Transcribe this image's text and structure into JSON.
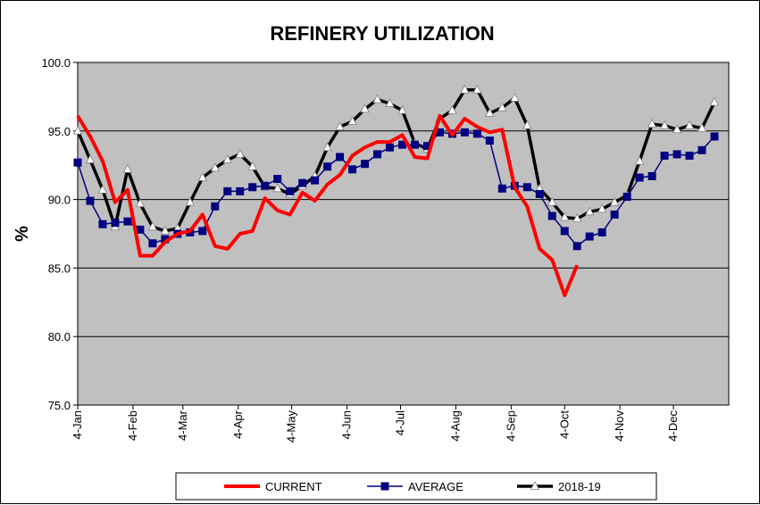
{
  "chart_data": {
    "type": "line",
    "title": "REFINERY UTILIZATION",
    "xlabel": "",
    "ylabel": "%",
    "ylim": [
      75,
      100
    ],
    "yticks": [
      "75.0",
      "80.0",
      "85.0",
      "90.0",
      "95.0",
      "100.0"
    ],
    "xticks": [
      "4-Jan",
      "4-Feb",
      "4-Mar",
      "4-Apr",
      "4-May",
      "4-Jun",
      "4-Jul",
      "4-Aug",
      "4-Sep",
      "4-Oct",
      "4-Nov",
      "4-Dec"
    ],
    "x_domain": [
      "4-Jan",
      "4-Jan (next year)"
    ],
    "grid": "horizontal",
    "legend": "bottom",
    "colors": {
      "plot_bg": "#C0C0C0",
      "current": "#FF0000",
      "average": "#000080",
      "prior": "#000000",
      "prior_marker": "#FFFFFF"
    },
    "series": [
      {
        "name": "CURRENT",
        "marker": "none",
        "x": [
          "4-Jan",
          "11-Jan",
          "18-Jan",
          "25-Jan",
          "1-Feb",
          "8-Feb",
          "15-Feb",
          "22-Feb",
          "1-Mar",
          "8-Mar",
          "15-Mar",
          "22-Mar",
          "29-Mar",
          "5-Apr",
          "12-Apr",
          "19-Apr",
          "26-Apr",
          "3-May",
          "10-May",
          "17-May",
          "24-May",
          "31-May",
          "7-Jun",
          "14-Jun",
          "21-Jun",
          "28-Jun",
          "5-Jul",
          "12-Jul",
          "19-Jul",
          "26-Jul",
          "2-Aug",
          "9-Aug",
          "16-Aug",
          "23-Aug",
          "30-Aug",
          "6-Sep",
          "13-Sep",
          "20-Sep",
          "27-Sep",
          "4-Oct",
          "11-Oct",
          "18-Oct"
        ],
        "values": [
          96.1,
          94.6,
          92.8,
          89.8,
          90.7,
          85.9,
          85.9,
          86.9,
          87.5,
          87.7,
          88.9,
          86.6,
          86.4,
          87.5,
          87.7,
          90.1,
          89.2,
          88.9,
          90.5,
          89.9,
          91.1,
          91.8,
          93.2,
          93.8,
          94.2,
          94.2,
          94.7,
          93.1,
          93.0,
          96.1,
          94.7,
          95.9,
          95.3,
          94.9,
          95.1,
          90.9,
          89.5,
          86.4,
          85.6,
          83.0,
          85.2,
          null
        ]
      },
      {
        "name": "AVERAGE",
        "marker": "square",
        "x": [
          "4-Jan",
          "11-Jan",
          "18-Jan",
          "25-Jan",
          "1-Feb",
          "8-Feb",
          "15-Feb",
          "22-Feb",
          "1-Mar",
          "8-Mar",
          "15-Mar",
          "22-Mar",
          "29-Mar",
          "5-Apr",
          "12-Apr",
          "19-Apr",
          "26-Apr",
          "3-May",
          "10-May",
          "17-May",
          "24-May",
          "31-May",
          "7-Jun",
          "14-Jun",
          "21-Jun",
          "28-Jun",
          "5-Jul",
          "12-Jul",
          "19-Jul",
          "26-Jul",
          "2-Aug",
          "9-Aug",
          "16-Aug",
          "23-Aug",
          "30-Aug",
          "6-Sep",
          "13-Sep",
          "20-Sep",
          "27-Sep",
          "4-Oct",
          "11-Oct",
          "18-Oct",
          "25-Oct",
          "1-Nov",
          "8-Nov",
          "15-Nov",
          "22-Nov",
          "29-Nov",
          "6-Dec",
          "13-Dec",
          "20-Dec",
          "27-Dec"
        ],
        "values": [
          92.7,
          89.9,
          88.2,
          88.3,
          88.4,
          87.8,
          86.8,
          87.1,
          87.5,
          87.6,
          87.7,
          89.5,
          90.6,
          90.6,
          90.9,
          91.0,
          91.5,
          90.6,
          91.2,
          91.4,
          92.4,
          93.1,
          92.2,
          92.6,
          93.3,
          93.8,
          94.0,
          94.0,
          93.9,
          94.9,
          94.8,
          94.9,
          94.8,
          94.3,
          90.8,
          91.0,
          90.9,
          90.4,
          88.8,
          87.7,
          86.6,
          87.3,
          87.6,
          88.9,
          90.2,
          91.6,
          91.7,
          93.2,
          93.3,
          93.2,
          93.6,
          94.6
        ]
      },
      {
        "name": "2018-19",
        "marker": "triangle",
        "x": [
          "4-Jan",
          "11-Jan",
          "18-Jan",
          "25-Jan",
          "1-Feb",
          "8-Feb",
          "15-Feb",
          "22-Feb",
          "1-Mar",
          "8-Mar",
          "15-Mar",
          "22-Mar",
          "29-Mar",
          "5-Apr",
          "12-Apr",
          "19-Apr",
          "26-Apr",
          "3-May",
          "10-May",
          "17-May",
          "24-May",
          "31-May",
          "7-Jun",
          "14-Jun",
          "21-Jun",
          "28-Jun",
          "5-Jul",
          "12-Jul",
          "19-Jul",
          "26-Jul",
          "2-Aug",
          "9-Aug",
          "16-Aug",
          "23-Aug",
          "30-Aug",
          "6-Sep",
          "13-Sep",
          "20-Sep",
          "27-Sep",
          "4-Oct",
          "11-Oct",
          "18-Oct",
          "25-Oct",
          "1-Nov",
          "8-Nov",
          "15-Nov",
          "22-Nov",
          "29-Nov",
          "6-Dec",
          "13-Dec",
          "20-Dec",
          "27-Dec"
        ],
        "values": [
          95.0,
          92.9,
          90.7,
          88.0,
          92.2,
          89.7,
          88.0,
          87.7,
          87.9,
          89.8,
          91.6,
          92.3,
          92.9,
          93.3,
          92.4,
          90.9,
          90.8,
          90.4,
          91.0,
          91.7,
          93.8,
          95.3,
          95.7,
          96.6,
          97.3,
          97.0,
          96.5,
          94.1,
          93.7,
          95.9,
          96.5,
          98.0,
          98.0,
          96.3,
          96.7,
          97.4,
          95.4,
          90.8,
          89.8,
          88.7,
          88.6,
          89.1,
          89.3,
          89.8,
          90.3,
          92.8,
          95.5,
          95.4,
          95.1,
          95.4,
          95.2,
          97.1
        ]
      }
    ]
  }
}
